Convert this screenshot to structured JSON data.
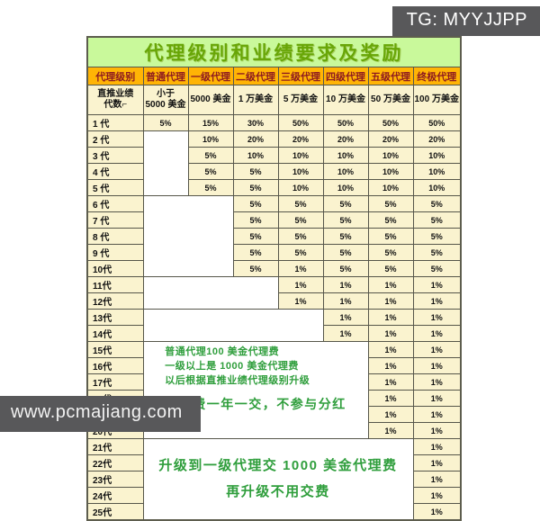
{
  "overlays": {
    "tg_label": "TG: MYYJJPP",
    "watermark": "www.pcmajiang.com"
  },
  "colors": {
    "title_bg": "#c9f99b",
    "title_text": "#68a607",
    "header_bg": "#ffb405",
    "header_text": "#8e1b20",
    "cell_bg": "#faf3cf",
    "note_text": "#2f9e3c",
    "badge_bg": "#58585a"
  },
  "table": {
    "title": "代理级别和业绩要求及奖励",
    "header": [
      "代理级别",
      "普通代理",
      "一级代理",
      "二级代理",
      "三级代理",
      "四级代理",
      "五级代理",
      "终极代理"
    ],
    "subheader": {
      "row_label_line1": "直推业绩",
      "row_label_line2": "代数⌐",
      "amounts": [
        [
          "小于",
          "5000 美金"
        ],
        [
          "5000 美金"
        ],
        [
          "1 万美金"
        ],
        [
          "5 万美金"
        ],
        [
          "10 万美金"
        ],
        [
          "50 万美金"
        ],
        [
          "100 万美金"
        ]
      ]
    },
    "notes": {
      "fee": {
        "lines": [
          "普通代理100 美金代理费",
          "一级以上是 1000 美金代理费",
          "以后根据直推业绩代理级别升级"
        ],
        "big_line": "代理费一年一交，不参与分红"
      },
      "upgrade": {
        "lines": [
          "升级到一级代理交 1000 美金代理费",
          "再升级不用交费"
        ]
      }
    },
    "rows": [
      {
        "label": "1 代",
        "values": [
          "5%",
          "15%",
          "30%",
          "50%",
          "50%",
          "50%",
          "50%"
        ]
      },
      {
        "label": "2 代",
        "white": {
          "colspan": 1,
          "rowspan": 4
        },
        "values": [
          "10%",
          "20%",
          "20%",
          "20%",
          "20%",
          "20%"
        ]
      },
      {
        "label": "3 代",
        "values": [
          "5%",
          "10%",
          "10%",
          "10%",
          "10%",
          "10%"
        ]
      },
      {
        "label": "4 代",
        "values": [
          "5%",
          "5%",
          "10%",
          "10%",
          "10%",
          "10%"
        ]
      },
      {
        "label": "5 代",
        "values": [
          "5%",
          "5%",
          "10%",
          "10%",
          "10%",
          "10%"
        ]
      },
      {
        "label": "6 代",
        "white": {
          "colspan": 2,
          "rowspan": 5
        },
        "values": [
          "5%",
          "5%",
          "5%",
          "5%",
          "5%"
        ]
      },
      {
        "label": "7 代",
        "values": [
          "5%",
          "5%",
          "5%",
          "5%",
          "5%"
        ]
      },
      {
        "label": "8 代",
        "values": [
          "5%",
          "5%",
          "5%",
          "5%",
          "5%"
        ]
      },
      {
        "label": "9 代",
        "values": [
          "5%",
          "5%",
          "5%",
          "5%",
          "5%"
        ]
      },
      {
        "label": "10代",
        "values": [
          "5%",
          "1%",
          "5%",
          "5%",
          "5%"
        ]
      },
      {
        "label": "11代",
        "white": {
          "colspan": 3,
          "rowspan": 2
        },
        "values": [
          "1%",
          "1%",
          "1%",
          "1%"
        ]
      },
      {
        "label": "12代",
        "values": [
          "1%",
          "1%",
          "1%",
          "1%"
        ]
      },
      {
        "label": "13代",
        "white": {
          "colspan": 4,
          "rowspan": 2
        },
        "values": [
          "1%",
          "1%",
          "1%"
        ]
      },
      {
        "label": "14代",
        "values": [
          "1%",
          "1%",
          "1%"
        ]
      },
      {
        "label": "15代",
        "white": {
          "colspan": 5,
          "rowspan": 6,
          "note": "fee"
        },
        "values": [
          "1%",
          "1%"
        ]
      },
      {
        "label": "16代",
        "values": [
          "1%",
          "1%"
        ]
      },
      {
        "label": "17代",
        "values": [
          "1%",
          "1%"
        ]
      },
      {
        "label": "18代",
        "values": [
          "1%",
          "1%"
        ]
      },
      {
        "label": "19代",
        "values": [
          "1%",
          "1%"
        ]
      },
      {
        "label": "20代",
        "values": [
          "1%",
          "1%"
        ]
      },
      {
        "label": "21代",
        "white": {
          "colspan": 6,
          "rowspan": 5,
          "note": "upgrade"
        },
        "values": [
          "1%"
        ]
      },
      {
        "label": "22代",
        "values": [
          "1%"
        ]
      },
      {
        "label": "23代",
        "values": [
          "1%"
        ]
      },
      {
        "label": "24代",
        "values": [
          "1%"
        ]
      },
      {
        "label": "25代",
        "values": [
          "1%"
        ]
      }
    ]
  },
  "chart_data": {
    "type": "table",
    "title": "代理级别和业绩要求及奖励",
    "columns": [
      "代理级别 / 直推业绩代数",
      "普通代理 (小于5000美金)",
      "一级代理 (5000美金)",
      "二级代理 (1万美金)",
      "三级代理 (5万美金)",
      "四级代理 (10万美金)",
      "五级代理 (50万美金)",
      "终极代理 (100万美金)"
    ],
    "rows": [
      [
        "1 代",
        "5%",
        "15%",
        "30%",
        "50%",
        "50%",
        "50%",
        "50%"
      ],
      [
        "2 代",
        null,
        "10%",
        "20%",
        "20%",
        "20%",
        "20%",
        "20%"
      ],
      [
        "3 代",
        null,
        "5%",
        "10%",
        "10%",
        "10%",
        "10%",
        "10%"
      ],
      [
        "4 代",
        null,
        "5%",
        "5%",
        "10%",
        "10%",
        "10%",
        "10%"
      ],
      [
        "5 代",
        null,
        "5%",
        "5%",
        "10%",
        "10%",
        "10%",
        "10%"
      ],
      [
        "6 代",
        null,
        null,
        "5%",
        "5%",
        "5%",
        "5%",
        "5%"
      ],
      [
        "7 代",
        null,
        null,
        "5%",
        "5%",
        "5%",
        "5%",
        "5%"
      ],
      [
        "8 代",
        null,
        null,
        "5%",
        "5%",
        "5%",
        "5%",
        "5%"
      ],
      [
        "9 代",
        null,
        null,
        "5%",
        "5%",
        "5%",
        "5%",
        "5%"
      ],
      [
        "10代",
        null,
        null,
        "5%",
        "1%",
        "5%",
        "5%",
        "5%"
      ],
      [
        "11代",
        null,
        null,
        null,
        "1%",
        "1%",
        "1%",
        "1%"
      ],
      [
        "12代",
        null,
        null,
        null,
        "1%",
        "1%",
        "1%",
        "1%"
      ],
      [
        "13代",
        null,
        null,
        null,
        null,
        "1%",
        "1%",
        "1%"
      ],
      [
        "14代",
        null,
        null,
        null,
        null,
        "1%",
        "1%",
        "1%"
      ],
      [
        "15代",
        null,
        null,
        null,
        null,
        null,
        "1%",
        "1%"
      ],
      [
        "16代",
        null,
        null,
        null,
        null,
        null,
        "1%",
        "1%"
      ],
      [
        "17代",
        null,
        null,
        null,
        null,
        null,
        "1%",
        "1%"
      ],
      [
        "18代",
        null,
        null,
        null,
        null,
        null,
        "1%",
        "1%"
      ],
      [
        "19代",
        null,
        null,
        null,
        null,
        null,
        "1%",
        "1%"
      ],
      [
        "20代",
        null,
        null,
        null,
        null,
        null,
        "1%",
        "1%"
      ],
      [
        "21代",
        null,
        null,
        null,
        null,
        null,
        null,
        "1%"
      ],
      [
        "22代",
        null,
        null,
        null,
        null,
        null,
        null,
        "1%"
      ],
      [
        "23代",
        null,
        null,
        null,
        null,
        null,
        null,
        "1%"
      ],
      [
        "24代",
        null,
        null,
        null,
        null,
        null,
        null,
        "1%"
      ],
      [
        "25代",
        null,
        null,
        null,
        null,
        null,
        null,
        "1%"
      ]
    ],
    "annotations": [
      "普通代理100 美金代理费",
      "一级以上是 1000 美金代理费",
      "以后根据直推业绩代理级别升级",
      "代理费一年一交，不参与分红",
      "升级到一级代理交 1000 美金代理费",
      "再升级不用交费"
    ]
  }
}
